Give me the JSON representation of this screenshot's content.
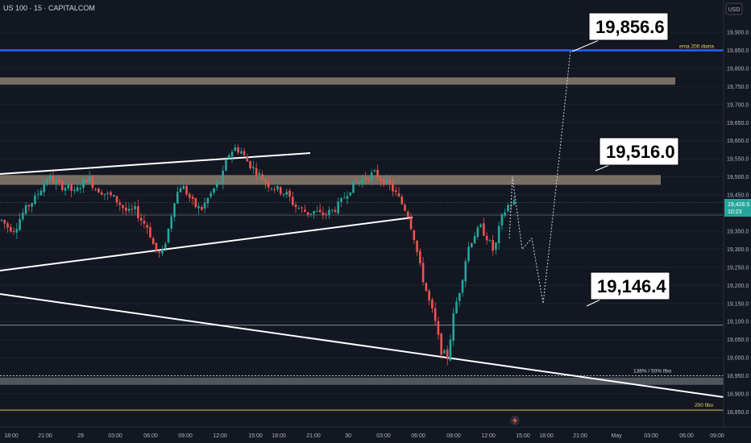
{
  "header": {
    "title": "US 100 · 15 · CAPITALCOM",
    "currency": "USD"
  },
  "colors": {
    "bg": "#131722",
    "up": "#26a69a",
    "down": "#ef5350",
    "axisBg": "#131722",
    "ema": "#2962ff",
    "zone": "#8a7f6e",
    "grayZone": "#5d6066",
    "fib": "#d4c34a",
    "price": "#26a69a"
  },
  "icons": {
    "flash": "lightning-icon"
  },
  "chart_data": {
    "type": "candlestick",
    "title": "US 100 · 15 · CAPITALCOM",
    "ylim": [
      18820,
      20000
    ],
    "y_ticks": [
      "19,900.0",
      "19,850.0",
      "19,800.0",
      "19,750.0",
      "19,700.0",
      "19,650.0",
      "19,600.0",
      "19,550.0",
      "19,500.0",
      "19,450.0",
      "19,400.0",
      "19,350.0",
      "19,300.0",
      "19,250.0",
      "19,200.0",
      "19,150.0",
      "19,100.0",
      "19,050.0",
      "19,000.0",
      "18,950.0",
      "18,900.0",
      "18,850.0"
    ],
    "x_ticks": [
      "18:00",
      "21:00",
      "29",
      "03:00",
      "06:00",
      "09:00",
      "12:00",
      "15:00",
      "18:00",
      "21:00",
      "30",
      "03:00",
      "06:00",
      "09:00",
      "12:00",
      "15:00",
      "18:00",
      "21:00",
      "May",
      "03:00",
      "06:00",
      "09:00"
    ],
    "current_price": {
      "label": "19,428.5",
      "countdown": "10:23"
    },
    "levels": {
      "ema200": {
        "value": 19850,
        "label": "ema 200 diaria"
      },
      "fib138": {
        "value": 18950,
        "label": "138% / 50% fibo"
      },
      "fib200": {
        "value": 18873,
        "label": "200 fibo"
      },
      "level_19090": {
        "value": 19090
      }
    },
    "zones": [
      {
        "from": 19755,
        "to": 19775
      },
      {
        "from": 19478,
        "to": 19505
      },
      {
        "from": 18925,
        "to": 18945
      }
    ],
    "callouts": [
      {
        "label": "19,856.6",
        "value": 19856.6
      },
      {
        "label": "19,516.0",
        "value": 19516.0
      },
      {
        "label": "19,146.4",
        "value": 19146.4
      }
    ],
    "projection": [
      19500,
      19300,
      19330,
      19150,
      19470,
      19850
    ],
    "trendlines": [
      "rising channel top",
      "rising channel bottom",
      "falling support"
    ],
    "price_path": [
      19380,
      19360,
      19355,
      19395,
      19420,
      19440,
      19470,
      19500,
      19485,
      19475,
      19470,
      19455,
      19480,
      19500,
      19470,
      19460,
      19450,
      19440,
      19420,
      19400,
      19410,
      19380,
      19360,
      19300,
      19280,
      19350,
      19440,
      19480,
      19450,
      19420,
      19410,
      19440,
      19470,
      19490,
      19560,
      19580,
      19570,
      19540,
      19520,
      19500,
      19480,
      19470,
      19460,
      19450,
      19420,
      19410,
      19400,
      19405,
      19395,
      19400,
      19410,
      19430,
      19460,
      19480,
      19490,
      19500,
      19510,
      19495,
      19480,
      19460,
      19430,
      19400,
      19330,
      19240,
      19170,
      19110,
      19020,
      19000,
      19130,
      19200,
      19300,
      19340,
      19360,
      19330,
      19290,
      19380,
      19420,
      19430
    ]
  }
}
